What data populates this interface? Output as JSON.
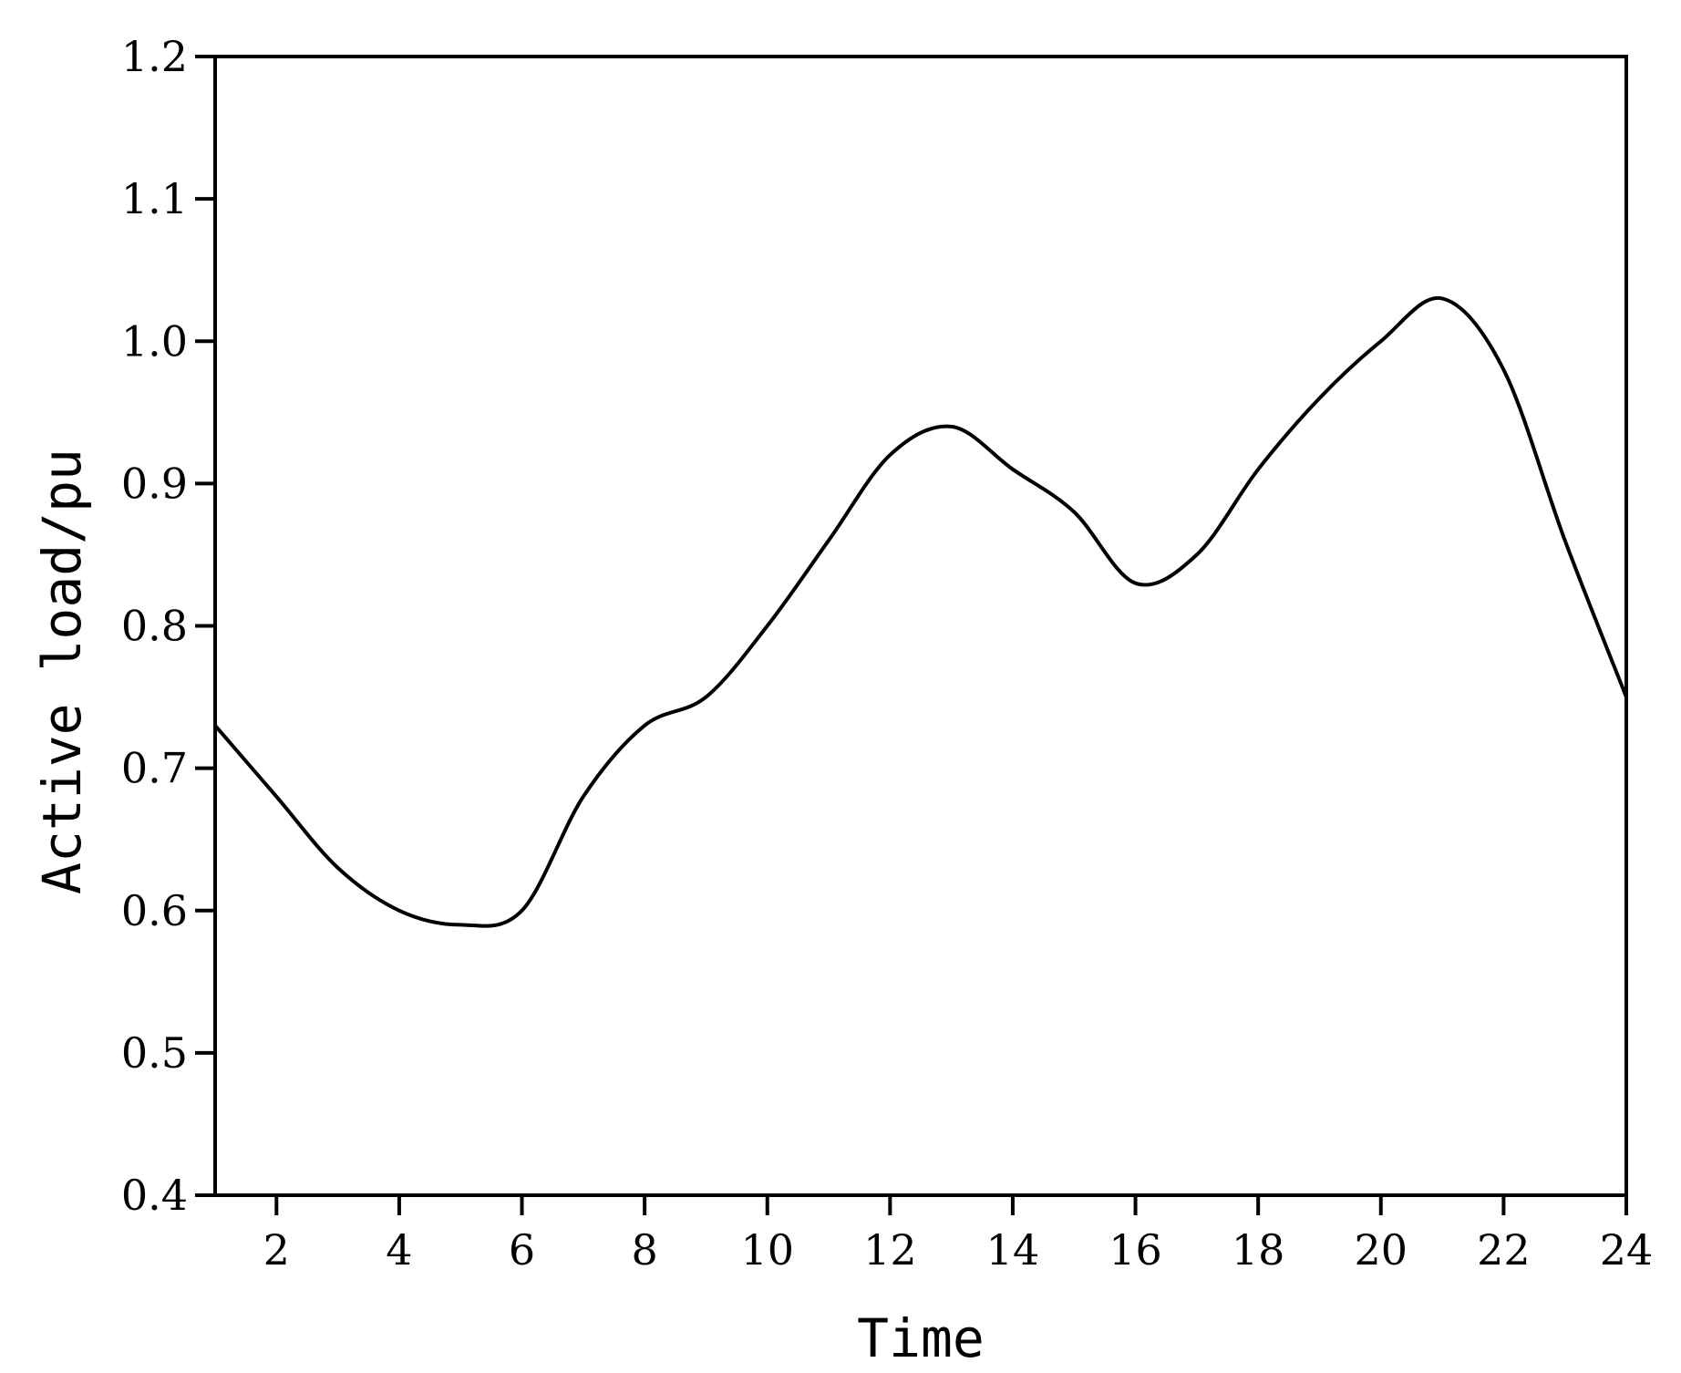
{
  "chart_data": {
    "type": "line",
    "title": "",
    "xlabel": "Time",
    "ylabel": "Active load/pu",
    "xlim": [
      1,
      24
    ],
    "ylim": [
      0.4,
      1.2
    ],
    "x_ticks": [
      2,
      4,
      6,
      8,
      10,
      12,
      14,
      16,
      18,
      20,
      22,
      24
    ],
    "y_ticks": [
      "0.4",
      "0.5",
      "0.6",
      "0.7",
      "0.8",
      "0.9",
      "1.0",
      "1.1",
      "1.2"
    ],
    "grid": false,
    "line_color": "#000000",
    "series": [
      {
        "x": [
          1,
          2,
          3,
          4,
          5,
          6,
          7,
          8,
          9,
          10,
          11,
          12,
          13,
          14,
          15,
          16,
          17,
          18,
          19,
          20,
          21,
          22,
          23,
          24
        ],
        "values": [
          0.73,
          0.68,
          0.63,
          0.6,
          0.59,
          0.6,
          0.68,
          0.73,
          0.75,
          0.8,
          0.86,
          0.92,
          0.94,
          0.91,
          0.88,
          0.83,
          0.85,
          0.91,
          0.96,
          1.0,
          1.03,
          0.98,
          0.86,
          0.75
        ]
      }
    ]
  }
}
